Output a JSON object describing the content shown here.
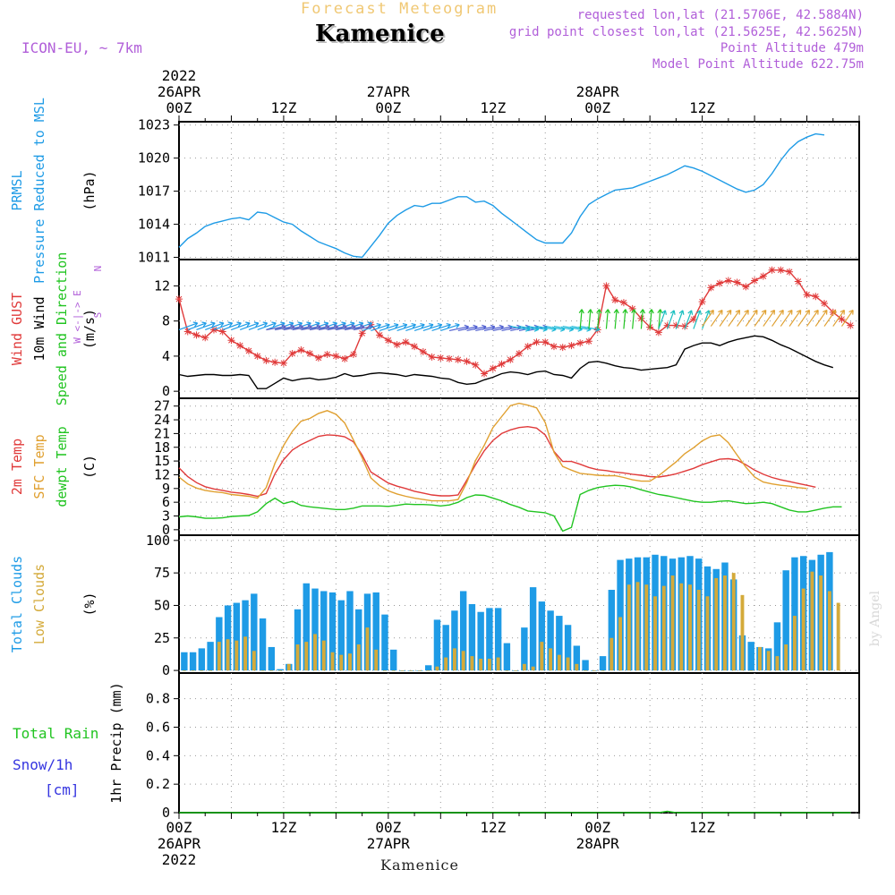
{
  "header": {
    "super_title": "Forecast Meteogram",
    "title": "Kamenice",
    "model": "ICON-EU, ~ 7km",
    "requested": "requested lon,lat (21.5706E, 42.5884N)",
    "grid": "grid point closest lon,lat (21.5625E, 42.5625N)",
    "point_alt": "Point Altitude 479m",
    "model_alt": "Model Point Altitude 622.75m",
    "footer": "Kamenice",
    "credit": "by Angel"
  },
  "colors": {
    "pressure": "#1e9be6",
    "gust": "#e03a3a",
    "wind": "#000000",
    "temp": "#e03a3a",
    "sfc_temp": "#e0a030",
    "dewpoint": "#21c421",
    "total_cloud": "#1e9be6",
    "low_cloud": "#d4aa3a",
    "rain": "#21c421",
    "snow": "#3535e0",
    "title_purple": "#b15fd9",
    "gold": "#f0c874"
  },
  "time_axis": {
    "hours": 78,
    "top_labels": [
      {
        "h": 0,
        "lines": [
          "2022",
          "26APR",
          "00Z"
        ]
      },
      {
        "h": 12,
        "lines": [
          "12Z"
        ]
      },
      {
        "h": 24,
        "lines": [
          "27APR",
          "00Z"
        ]
      },
      {
        "h": 36,
        "lines": [
          "12Z"
        ]
      },
      {
        "h": 48,
        "lines": [
          "28APR",
          "00Z"
        ]
      },
      {
        "h": 60,
        "lines": [
          "12Z"
        ]
      }
    ],
    "bottom_labels": [
      {
        "h": 0,
        "lines": [
          "00Z",
          "26APR",
          "2022"
        ]
      },
      {
        "h": 12,
        "lines": [
          "12Z"
        ]
      },
      {
        "h": 24,
        "lines": [
          "00Z",
          "27APR"
        ]
      },
      {
        "h": 36,
        "lines": [
          "12Z"
        ]
      },
      {
        "h": 48,
        "lines": [
          "00Z",
          "28APR"
        ]
      },
      {
        "h": 60,
        "lines": [
          "12Z"
        ]
      }
    ]
  },
  "chart_data": [
    {
      "id": "pressure",
      "type": "line",
      "title_lines": [
        {
          "text": "PRMSL",
          "color": "pressure"
        },
        {
          "text": "Pressure Reduced to MSL",
          "color": "pressure"
        },
        {
          "text": "(hPa)",
          "color": "wind"
        }
      ],
      "yticks": [
        1011,
        1014,
        1017,
        1020,
        1023
      ],
      "ylim": [
        1010.8,
        1023.3
      ],
      "series": [
        {
          "color": "pressure",
          "values": [
            1011.9,
            1012.7,
            1013.2,
            1013.8,
            1014.1,
            1014.3,
            1014.5,
            1014.6,
            1014.4,
            1015.1,
            1015.0,
            1014.6,
            1014.2,
            1014.0,
            1013.4,
            1012.9,
            1012.4,
            1012.1,
            1011.8,
            1011.4,
            1011.1,
            1011.0,
            1012.0,
            1013.0,
            1014.1,
            1014.8,
            1015.3,
            1015.7,
            1015.6,
            1015.9,
            1015.9,
            1016.2,
            1016.5,
            1016.5,
            1016.0,
            1016.1,
            1015.7,
            1015.0,
            1014.4,
            1013.8,
            1013.2,
            1012.6,
            1012.3,
            1012.3,
            1012.3,
            1013.2,
            1014.7,
            1015.8,
            1016.3,
            1016.7,
            1017.1,
            1017.2,
            1017.3,
            1017.6,
            1017.9,
            1018.2,
            1018.5,
            1018.9,
            1019.3,
            1019.1,
            1018.8,
            1018.4,
            1018.0,
            1017.6,
            1017.2,
            1016.9,
            1017.1,
            1017.6,
            1018.6,
            1019.8,
            1020.8,
            1021.5,
            1021.9,
            1022.2,
            1022.1,
            null,
            null,
            null
          ]
        }
      ]
    },
    {
      "id": "wind",
      "type": "line",
      "title_lines": [
        {
          "text": "Wind GUST",
          "color": "gust"
        },
        {
          "text": "10m Wind",
          "color": "wind"
        },
        {
          "text": "Speed and Direction",
          "color": "dewpoint"
        },
        {
          "text": "(m/s)",
          "color": "wind"
        }
      ],
      "compass": [
        "N",
        "W <-|-> E",
        "S"
      ],
      "yticks": [
        0,
        4,
        8,
        12
      ],
      "ylim": [
        -0.8,
        15
      ],
      "series": [
        {
          "name": "Wind GUST",
          "color": "gust",
          "markers": "plus",
          "values": [
            10.5,
            6.8,
            6.4,
            6.1,
            7.0,
            6.8,
            5.8,
            5.2,
            4.6,
            4.0,
            3.5,
            3.3,
            3.2,
            4.3,
            4.7,
            4.3,
            3.8,
            4.2,
            4.0,
            3.7,
            4.2,
            6.6,
            7.6,
            6.4,
            5.8,
            5.3,
            5.6,
            5.1,
            4.5,
            3.9,
            3.8,
            3.7,
            3.6,
            3.4,
            3.0,
            2.0,
            2.6,
            3.1,
            3.6,
            4.3,
            5.1,
            5.6,
            5.6,
            5.1,
            5.0,
            5.2,
            5.5,
            5.7,
            7.0,
            12.0,
            10.4,
            10.1,
            9.4,
            8.3,
            7.3,
            6.7,
            7.5,
            7.5,
            7.4,
            8.2,
            10.2,
            11.8,
            12.3,
            12.6,
            12.4,
            11.9,
            12.6,
            13.1,
            13.8,
            13.8,
            13.6,
            12.5,
            11.0,
            10.8,
            10.0,
            9.0,
            8.2,
            7.5
          ]
        },
        {
          "name": "10m Wind",
          "color": "wind",
          "values": [
            1.9,
            1.7,
            1.8,
            1.9,
            1.9,
            1.8,
            1.8,
            1.9,
            1.8,
            0.3,
            0.3,
            0.9,
            1.5,
            1.2,
            1.4,
            1.5,
            1.3,
            1.4,
            1.6,
            2.0,
            1.7,
            1.8,
            2.0,
            2.1,
            2.0,
            1.9,
            1.7,
            1.9,
            1.8,
            1.7,
            1.5,
            1.4,
            1.0,
            0.8,
            0.9,
            1.3,
            1.6,
            2.0,
            2.2,
            2.1,
            1.9,
            2.2,
            2.3,
            1.9,
            1.8,
            1.5,
            2.6,
            3.3,
            3.4,
            3.2,
            2.9,
            2.7,
            2.6,
            2.4,
            2.5,
            2.6,
            2.7,
            3.0,
            4.8,
            5.2,
            5.5,
            5.5,
            5.2,
            5.6,
            5.9,
            6.1,
            6.3,
            6.2,
            5.8,
            5.3,
            4.9,
            4.4,
            3.9,
            3.4,
            3.0,
            2.7,
            null,
            null
          ]
        }
      ],
      "barbs": [
        {
          "from": 0,
          "to": 20,
          "ang": 70,
          "color": "#1e9be6",
          "y": 7.0
        },
        {
          "from": 10,
          "to": 20,
          "ang": 80,
          "color": "#6060c0",
          "y": 7.0
        },
        {
          "from": 21,
          "to": 30,
          "ang": 72,
          "color": "#1e9be6",
          "y": 6.9
        },
        {
          "from": 31,
          "to": 40,
          "ang": 78,
          "color": "#5060d0",
          "y": 6.9
        },
        {
          "from": 38,
          "to": 46,
          "ang": 100,
          "color": "#1ab8d8",
          "y": 7.4
        },
        {
          "from": 46,
          "to": 55,
          "ang": 5,
          "color": "#21c421",
          "y": 7.1
        },
        {
          "from": 55,
          "to": 60,
          "ang": 20,
          "color": "#1abfbf",
          "y": 7.1
        },
        {
          "from": 60,
          "to": 76,
          "ang": 35,
          "color": "#e0a030",
          "y": 7.4
        }
      ]
    },
    {
      "id": "temperature",
      "type": "line",
      "title_lines": [
        {
          "text": "2m Temp",
          "color": "temp"
        },
        {
          "text": "SFC Temp",
          "color": "sfc_temp"
        },
        {
          "text": "dewpt Temp",
          "color": "dewpoint"
        },
        {
          "text": "(C)",
          "color": "wind"
        }
      ],
      "yticks": [
        0,
        3,
        6,
        9,
        12,
        15,
        18,
        21,
        24,
        27
      ],
      "ylim": [
        -1.2,
        28.7
      ],
      "series": [
        {
          "name": "2m Temp",
          "color": "temp",
          "values": [
            13.5,
            11.6,
            10.3,
            9.4,
            8.9,
            8.6,
            8.2,
            8.0,
            7.7,
            7.3,
            7.9,
            12.2,
            15.3,
            17.4,
            18.6,
            19.5,
            20.4,
            20.7,
            20.6,
            20.3,
            19.2,
            16.3,
            12.6,
            11.4,
            10.2,
            9.5,
            9.0,
            8.4,
            8.0,
            7.6,
            7.4,
            7.4,
            7.6,
            10.8,
            14.2,
            17.2,
            19.5,
            21.0,
            21.8,
            22.3,
            22.5,
            22.2,
            20.7,
            17.1,
            14.9,
            14.9,
            14.3,
            13.6,
            13.1,
            12.9,
            12.6,
            12.4,
            12.1,
            11.9,
            11.6,
            11.5,
            11.8,
            12.2,
            12.8,
            13.4,
            14.2,
            14.8,
            15.4,
            15.5,
            15.2,
            14.2,
            13.0,
            12.1,
            11.4,
            10.9,
            10.5,
            10.1,
            9.7,
            9.3,
            null,
            null,
            null,
            null
          ]
        },
        {
          "name": "SFC Temp",
          "color": "sfc_temp",
          "values": [
            11.5,
            10.0,
            9.1,
            8.6,
            8.3,
            8.1,
            7.7,
            7.5,
            7.3,
            6.9,
            9.2,
            14.5,
            18.4,
            21.5,
            23.7,
            24.3,
            25.4,
            26.0,
            25.2,
            23.3,
            19.6,
            15.7,
            11.3,
            9.6,
            8.5,
            7.8,
            7.3,
            6.9,
            6.6,
            6.3,
            6.3,
            6.3,
            6.6,
            10.3,
            15.1,
            18.4,
            22.3,
            24.7,
            27.1,
            27.6,
            27.2,
            26.6,
            23.4,
            16.9,
            13.8,
            13.0,
            12.3,
            12.1,
            11.9,
            11.8,
            11.8,
            11.4,
            10.9,
            10.6,
            10.6,
            11.8,
            13.3,
            14.8,
            16.6,
            17.9,
            19.4,
            20.4,
            20.7,
            19.0,
            16.3,
            13.7,
            11.5,
            10.4,
            10.0,
            9.7,
            9.5,
            9.2,
            9.0,
            null,
            null,
            null,
            null,
            null
          ]
        },
        {
          "name": "dewpt Temp",
          "color": "dewpoint",
          "values": [
            2.8,
            3.0,
            2.8,
            2.5,
            2.5,
            2.6,
            2.9,
            3.0,
            3.1,
            3.9,
            5.7,
            6.9,
            5.7,
            6.2,
            5.3,
            5.0,
            4.8,
            4.6,
            4.4,
            4.4,
            4.7,
            5.2,
            5.2,
            5.2,
            5.1,
            5.3,
            5.6,
            5.5,
            5.5,
            5.4,
            5.2,
            5.4,
            6.0,
            7.0,
            7.6,
            7.5,
            6.9,
            6.3,
            5.5,
            4.9,
            4.1,
            3.9,
            3.7,
            3.0,
            -0.3,
            0.5,
            7.7,
            8.6,
            9.2,
            9.5,
            9.7,
            9.6,
            9.3,
            8.7,
            8.2,
            7.7,
            7.4,
            7.0,
            6.6,
            6.2,
            6.0,
            6.0,
            6.2,
            6.3,
            6.0,
            5.7,
            5.8,
            6.0,
            5.7,
            5.0,
            4.3,
            3.9,
            3.9,
            4.3,
            4.7,
            5.0,
            5.0,
            null
          ]
        }
      ]
    },
    {
      "id": "clouds",
      "type": "bar",
      "title_lines": [
        {
          "text": "Total Clouds",
          "color": "total_cloud"
        },
        {
          "text": "Low Clouds",
          "color": "low_cloud"
        },
        {
          "text": "(%)",
          "color": "wind"
        }
      ],
      "yticks": [
        0,
        25,
        50,
        75,
        100
      ],
      "ylim": [
        -2,
        104
      ],
      "series": [
        {
          "name": "Total Clouds",
          "color": "total_cloud",
          "values": [
            14,
            14,
            17,
            22,
            41,
            50,
            52,
            54,
            59,
            40,
            18,
            1,
            5,
            47,
            67,
            63,
            61,
            60,
            54,
            61,
            47,
            59,
            60,
            43,
            16,
            0,
            0,
            0,
            4,
            39,
            35,
            46,
            61,
            51,
            45,
            48,
            48,
            21,
            0,
            33,
            64,
            53,
            46,
            42,
            35,
            19,
            8,
            0,
            11,
            62,
            85,
            86,
            87,
            87,
            89,
            88,
            86,
            87,
            88,
            86,
            80,
            78,
            83,
            70,
            27,
            22,
            18,
            17,
            37,
            77,
            87,
            88,
            85,
            89,
            91,
            null,
            null,
            null
          ]
        },
        {
          "name": "Low Clouds",
          "color": "low_cloud",
          "values": [
            0,
            0,
            0,
            0,
            22,
            24,
            23,
            26,
            15,
            0,
            0,
            0,
            5,
            20,
            22,
            28,
            23,
            14,
            12,
            13,
            20,
            33,
            16,
            0,
            0,
            0,
            0,
            0,
            0,
            3,
            10,
            17,
            15,
            11,
            9,
            9,
            10,
            0,
            0,
            5,
            3,
            22,
            17,
            12,
            10,
            5,
            0,
            0,
            0,
            25,
            41,
            66,
            68,
            66,
            57,
            65,
            73,
            67,
            66,
            62,
            57,
            71,
            73,
            75,
            58,
            0,
            18,
            15,
            11,
            20,
            42,
            63,
            76,
            73,
            61,
            52,
            null,
            null
          ]
        }
      ]
    },
    {
      "id": "precip",
      "type": "line",
      "title_lines": [
        {
          "text": "1hr Precip (mm)",
          "color": "wind"
        }
      ],
      "side_labels": [
        {
          "text": "Total  Rain",
          "color": "rain"
        },
        {
          "text": "Snow/1h",
          "color": "snow"
        },
        {
          "text": "[cm]",
          "color": "snow"
        }
      ],
      "yticks": [
        0,
        0.2,
        0.4,
        0.6,
        0.8
      ],
      "ylim": [
        0,
        0.98
      ],
      "series": [
        {
          "name": "Total Rain",
          "color": "rain",
          "values": [
            0,
            0,
            0,
            0,
            0,
            0,
            0,
            0,
            0,
            0,
            0,
            0,
            0,
            0,
            0,
            0,
            0,
            0,
            0,
            0,
            0,
            0,
            0,
            0,
            0,
            0,
            0,
            0,
            0,
            0,
            0,
            0,
            0,
            0,
            0,
            0,
            0,
            0,
            0,
            0,
            0,
            0,
            0,
            0,
            0,
            0,
            0,
            0,
            0,
            0,
            0,
            0,
            0,
            0,
            0,
            0,
            0.01,
            0,
            0,
            0,
            0,
            0,
            0,
            0,
            0,
            0,
            0,
            0,
            0,
            0,
            0,
            0,
            0,
            0,
            0,
            0,
            0,
            0
          ]
        }
      ]
    }
  ]
}
